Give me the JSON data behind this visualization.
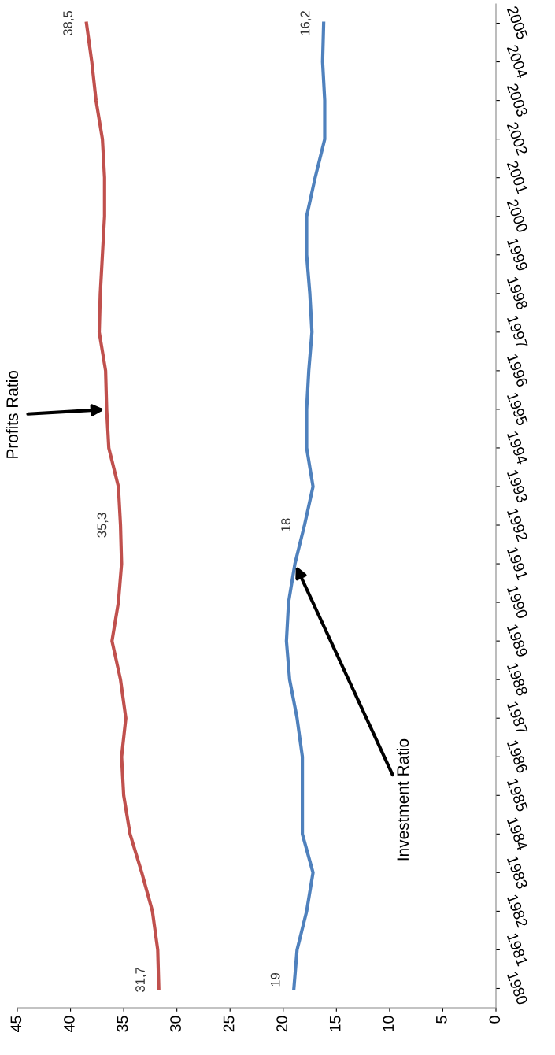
{
  "chart_data": {
    "type": "line",
    "orientation": "horizontal",
    "categories": [
      "2005",
      "2004",
      "2003",
      "2002",
      "2001",
      "2000",
      "1999",
      "1998",
      "1997",
      "1996",
      "1995",
      "1994",
      "1993",
      "1992",
      "1991",
      "1990",
      "1989",
      "1988",
      "1987",
      "1986",
      "1985",
      "1984",
      "1983",
      "1982",
      "1981",
      "1980"
    ],
    "series": [
      {
        "color": "#c0504d",
        "values": [
          38.5,
          38.0,
          37.6,
          37.0,
          36.8,
          36.8,
          37.0,
          37.2,
          37.3,
          36.7,
          36.6,
          36.4,
          35.5,
          35.3,
          35.2,
          35.5,
          36.1,
          35.3,
          34.8,
          35.2,
          35.0,
          34.4,
          33.3,
          32.3,
          31.8,
          31.7
        ],
        "value_labels": [
          "38,5",
          null,
          null,
          null,
          null,
          null,
          null,
          null,
          null,
          null,
          null,
          null,
          null,
          "35,3",
          null,
          null,
          null,
          null,
          null,
          null,
          null,
          null,
          null,
          null,
          null,
          "31,7"
        ]
      },
      {
        "color": "#4f81bd",
        "values": [
          16.2,
          16.3,
          16.1,
          16.1,
          17.0,
          17.8,
          17.8,
          17.5,
          17.3,
          17.6,
          17.8,
          17.8,
          17.2,
          18.0,
          18.9,
          19.5,
          19.7,
          19.4,
          18.7,
          18.2,
          18.2,
          18.2,
          17.2,
          17.8,
          18.7,
          19.0
        ],
        "value_labels": [
          "16,2",
          null,
          null,
          null,
          null,
          null,
          null,
          null,
          null,
          null,
          null,
          null,
          null,
          "18",
          null,
          null,
          null,
          null,
          null,
          null,
          null,
          null,
          null,
          null,
          null,
          "19"
        ]
      }
    ],
    "xlim": [
      45,
      0
    ],
    "xticks": [
      0,
      5,
      10,
      15,
      20,
      25,
      30,
      35,
      40,
      45
    ],
    "annotations": [
      {
        "text": "Profits Ratio",
        "x": 36.6,
        "y": "1995"
      },
      {
        "text": "Investment Ratio",
        "x": 18.9,
        "y": "1991"
      }
    ],
    "grid": false,
    "marker": "none",
    "line_style": "solid"
  }
}
